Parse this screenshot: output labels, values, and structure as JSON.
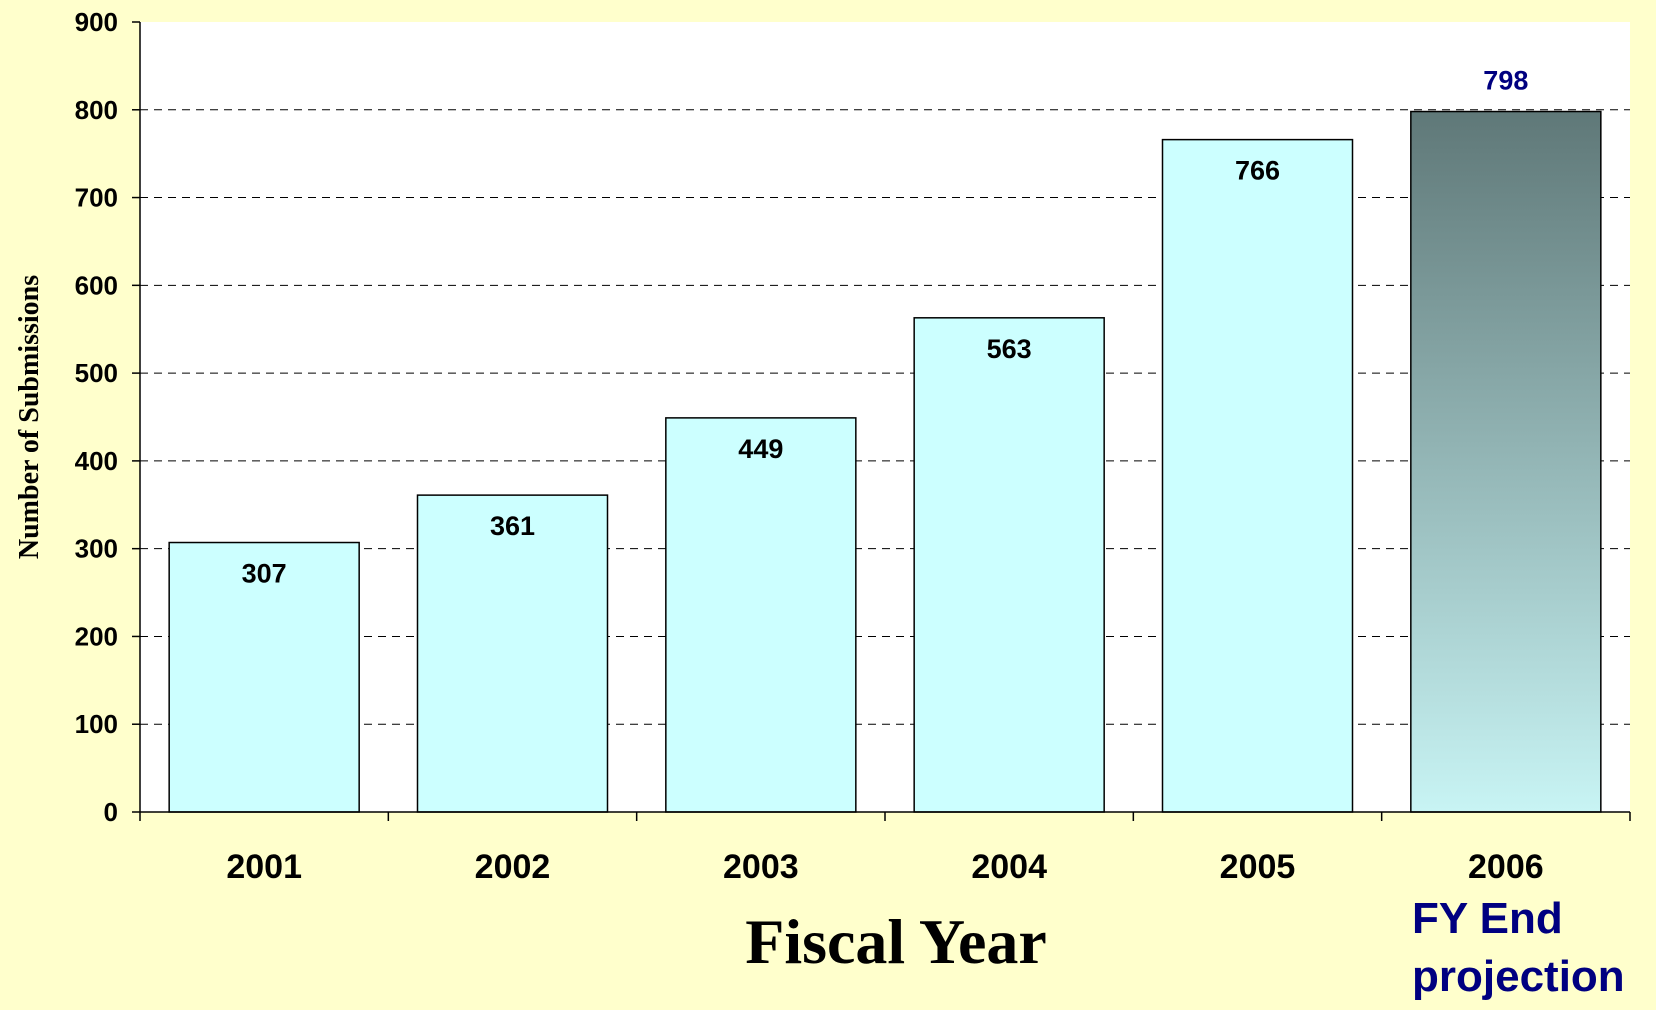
{
  "chart_data": {
    "type": "bar",
    "categories": [
      "2001",
      "2002",
      "2003",
      "2004",
      "2005",
      "2006"
    ],
    "values": [
      307,
      361,
      449,
      563,
      766,
      798
    ],
    "data_labels": [
      "307",
      "361",
      "449",
      "563",
      "766",
      "798"
    ],
    "projected_index": 5,
    "xlabel": "Fiscal Year",
    "ylabel": "Number of Submissions",
    "ylim": [
      0,
      900
    ],
    "yticks": [
      0,
      100,
      200,
      300,
      400,
      500,
      600,
      700,
      800,
      900
    ],
    "grid": true,
    "annotation": {
      "lines": [
        "FY End",
        "projection"
      ]
    },
    "colors": {
      "background": "#ffffcc",
      "plot_area": "#ffffff",
      "bar_fill": "#ccffff",
      "projection_top": "#5f7878",
      "projection_bottom": "#c8f4f4",
      "projection_text": "#000080"
    }
  }
}
